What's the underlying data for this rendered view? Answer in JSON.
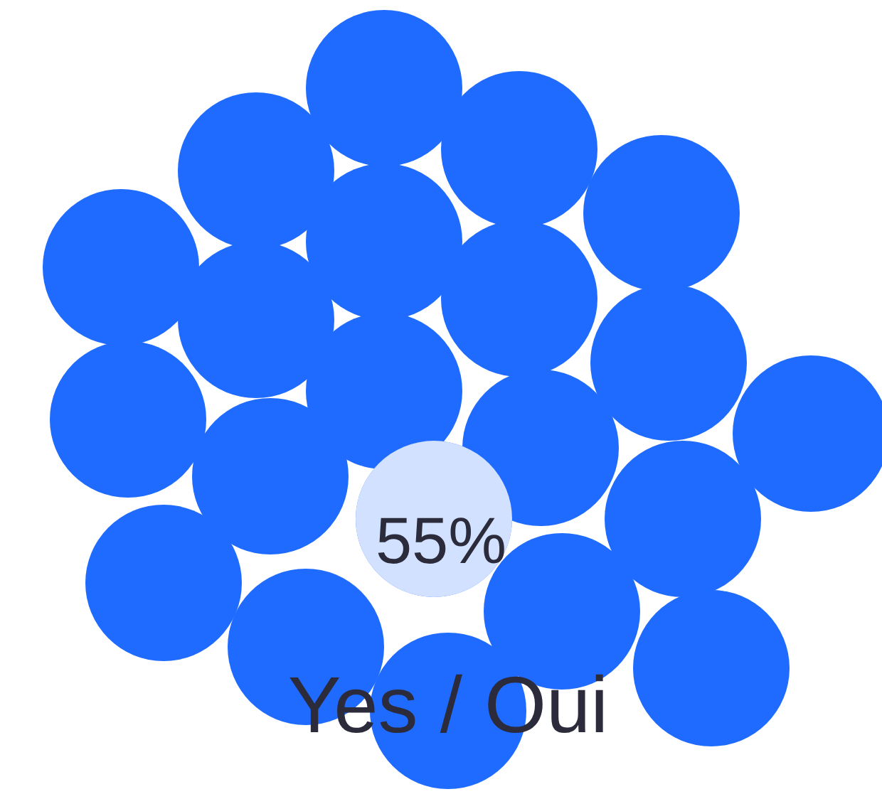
{
  "chart_data": {
    "type": "other",
    "categories": [
      "Yes / Oui"
    ],
    "values": [
      55
    ],
    "value_labels": [
      "55%"
    ],
    "color": "#1f6bff"
  }
}
